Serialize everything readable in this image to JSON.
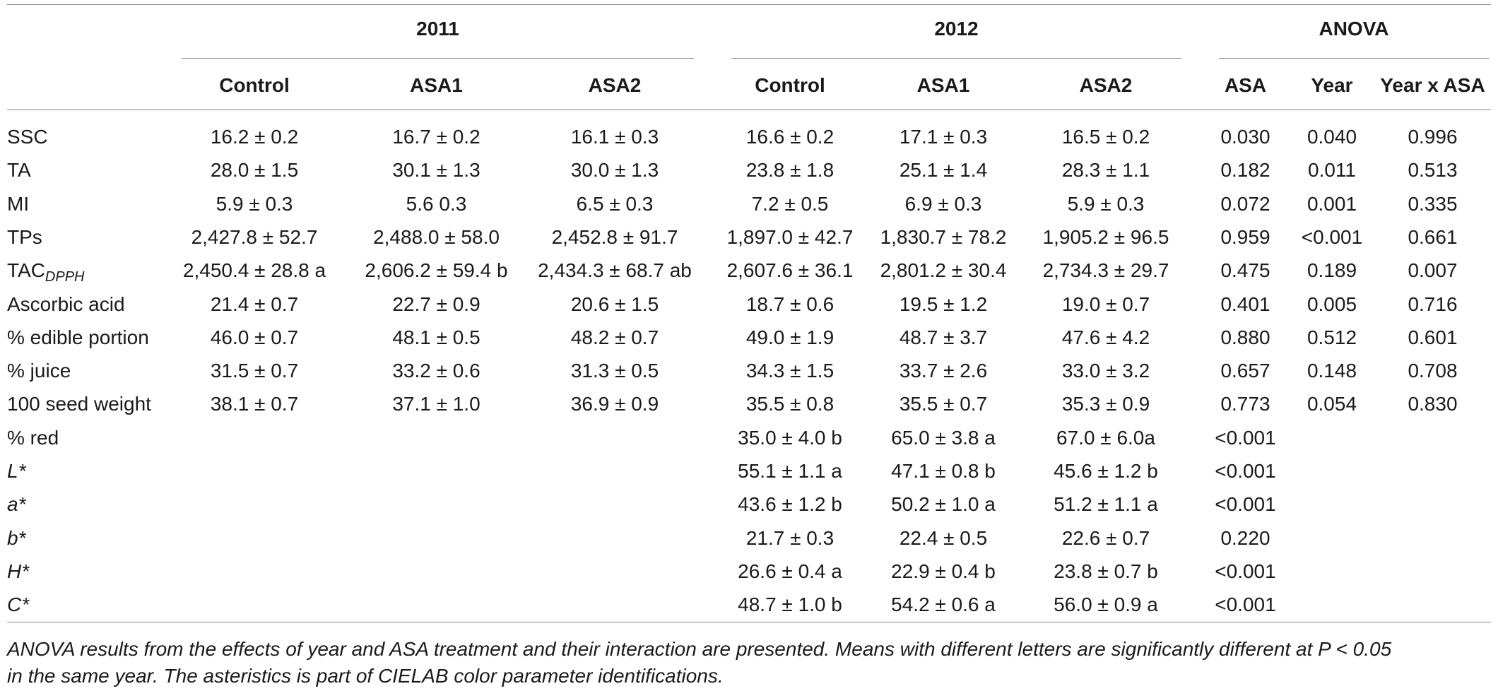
{
  "table": {
    "group_headers": [
      "2011",
      "2012",
      "ANOVA"
    ],
    "column_headers": [
      "Control",
      "ASA1",
      "ASA2",
      "Control",
      "ASA1",
      "ASA2",
      "ASA",
      "Year",
      "Year x ASA"
    ],
    "rows": [
      {
        "label": "SSC",
        "label_sub": "",
        "label_italic": false,
        "cells": [
          "16.2 ± 0.2",
          "16.7 ± 0.2",
          "16.1 ± 0.3",
          "16.6 ± 0.2",
          "17.1 ± 0.3",
          "16.5 ± 0.2",
          "0.030",
          "0.040",
          "0.996"
        ]
      },
      {
        "label": "TA",
        "label_sub": "",
        "label_italic": false,
        "cells": [
          "28.0 ± 1.5",
          "30.1 ± 1.3",
          "30.0 ± 1.3",
          "23.8 ± 1.8",
          "25.1 ± 1.4",
          "28.3 ± 1.1",
          "0.182",
          "0.011",
          "0.513"
        ]
      },
      {
        "label": "MI",
        "label_sub": "",
        "label_italic": false,
        "cells": [
          "5.9 ± 0.3",
          "5.6 0.3",
          "6.5 ± 0.3",
          "7.2 ± 0.5",
          "6.9 ± 0.3",
          "5.9 ± 0.3",
          "0.072",
          "0.001",
          "0.335"
        ]
      },
      {
        "label": "TPs",
        "label_sub": "",
        "label_italic": false,
        "cells": [
          "2,427.8 ± 52.7",
          "2,488.0 ± 58.0",
          "2,452.8 ± 91.7",
          "1,897.0 ± 42.7",
          "1,830.7 ± 78.2",
          "1,905.2 ± 96.5",
          "0.959",
          "<0.001",
          "0.661"
        ]
      },
      {
        "label": "TAC",
        "label_sub": "DPPH",
        "label_italic": false,
        "cells": [
          "2,450.4 ± 28.8 a",
          "2,606.2 ± 59.4 b",
          "2,434.3 ± 68.7 ab",
          "2,607.6 ± 36.1",
          "2,801.2 ± 30.4",
          "2,734.3 ± 29.7",
          "0.475",
          "0.189",
          "0.007"
        ]
      },
      {
        "label": "Ascorbic acid",
        "label_sub": "",
        "label_italic": false,
        "cells": [
          "21.4 ± 0.7",
          "22.7 ± 0.9",
          "20.6 ± 1.5",
          "18.7 ± 0.6",
          "19.5 ± 1.2",
          "19.0 ± 0.7",
          "0.401",
          "0.005",
          "0.716"
        ]
      },
      {
        "label": "% edible portion",
        "label_sub": "",
        "label_italic": false,
        "cells": [
          "46.0 ± 0.7",
          "48.1 ± 0.5",
          "48.2 ± 0.7",
          "49.0 ± 1.9",
          "48.7 ± 3.7",
          "47.6 ± 4.2",
          "0.880",
          "0.512",
          "0.601"
        ]
      },
      {
        "label": "% juice",
        "label_sub": "",
        "label_italic": false,
        "cells": [
          "31.5 ± 0.7",
          "33.2 ± 0.6",
          "31.3 ± 0.5",
          "34.3 ± 1.5",
          "33.7 ± 2.6",
          "33.0 ± 3.2",
          "0.657",
          "0.148",
          "0.708"
        ]
      },
      {
        "label": "100 seed weight",
        "label_sub": "",
        "label_italic": false,
        "cells": [
          "38.1 ± 0.7",
          "37.1 ± 1.0",
          "36.9 ± 0.9",
          "35.5 ± 0.8",
          "35.5 ± 0.7",
          "35.3 ± 0.9",
          "0.773",
          "0.054",
          "0.830"
        ]
      },
      {
        "label": "% red",
        "label_sub": "",
        "label_italic": false,
        "cells": [
          "",
          "",
          "",
          "35.0 ± 4.0 b",
          "65.0 ± 3.8 a",
          "67.0 ± 6.0a",
          "<0.001",
          "",
          ""
        ]
      },
      {
        "label": "L*",
        "label_sub": "",
        "label_italic": true,
        "cells": [
          "",
          "",
          "",
          "55.1 ± 1.1 a",
          "47.1 ± 0.8 b",
          "45.6 ± 1.2 b",
          "<0.001",
          "",
          ""
        ]
      },
      {
        "label": "a*",
        "label_sub": "",
        "label_italic": true,
        "cells": [
          "",
          "",
          "",
          "43.6 ± 1.2 b",
          "50.2 ± 1.0 a",
          "51.2 ± 1.1 a",
          "<0.001",
          "",
          ""
        ]
      },
      {
        "label": "b*",
        "label_sub": "",
        "label_italic": true,
        "cells": [
          "",
          "",
          "",
          "21.7 ± 0.3",
          "22.4 ± 0.5",
          "22.6 ± 0.7",
          "0.220",
          "",
          ""
        ]
      },
      {
        "label": "H*",
        "label_sub": "",
        "label_italic": true,
        "cells": [
          "",
          "",
          "",
          "26.6 ± 0.4 a",
          "22.9 ± 0.4 b",
          "23.8 ± 0.7 b",
          "<0.001",
          "",
          ""
        ]
      },
      {
        "label": "C*",
        "label_sub": "",
        "label_italic": true,
        "cells": [
          "",
          "",
          "",
          "48.7 ± 1.0 b",
          "54.2 ± 0.6 a",
          "56.0 ± 0.9 a",
          "<0.001",
          "",
          ""
        ]
      }
    ]
  },
  "footnote": {
    "line1": "ANOVA results from the effects of year and ASA treatment and their interaction are presented. Means with different letters are significantly different at P < 0.05",
    "line2": "in the same year. The asteristics is part of CIELAB color parameter identifications."
  }
}
